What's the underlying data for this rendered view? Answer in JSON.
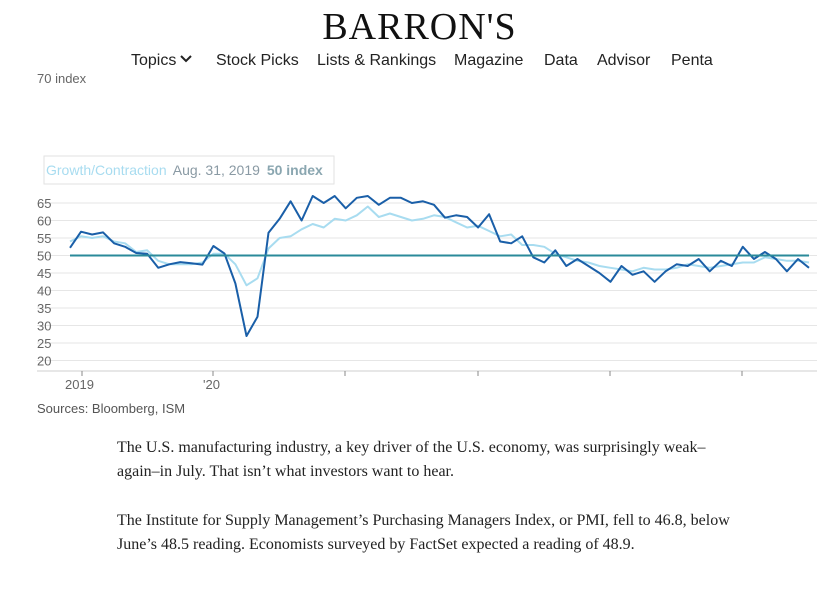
{
  "site": {
    "logo": "BARRON'S"
  },
  "nav": {
    "items": [
      "Topics",
      "Stock Picks",
      "Lists & Rankings",
      "Magazine",
      "Data",
      "Advisor",
      "Penta"
    ]
  },
  "chart_data": {
    "type": "line",
    "ylabel": "70 index",
    "ylim": [
      18,
      70
    ],
    "y_ticks": [
      20,
      25,
      30,
      35,
      40,
      45,
      50,
      55,
      60,
      65
    ],
    "x_tick_labels": [
      "2019",
      "'20"
    ],
    "x_start": "2018-12",
    "reference_line": {
      "value": 50,
      "label": "Growth/Contraction",
      "date": "Aug. 31, 2019",
      "value_label": "50 index",
      "color": "#2a8a9a"
    },
    "series": [
      {
        "color": "#1a5fa8",
        "values": [
          52.2,
          56.8,
          56.0,
          56.6,
          53.5,
          52.5,
          50.7,
          50.5,
          46.5,
          47.5,
          48.1,
          47.8,
          47.4,
          52.7,
          50.6,
          42.0,
          27.0,
          32.5,
          56.5,
          60.5,
          65.5,
          60.0,
          67.0,
          65.0,
          67.0,
          63.5,
          66.5,
          67.0,
          64.5,
          66.5,
          66.5,
          65.0,
          65.5,
          64.5,
          60.8,
          61.5,
          61.0,
          58.0,
          61.8,
          54.0,
          53.5,
          55.5,
          49.5,
          48.0,
          51.5,
          47.0,
          49.0,
          47.0,
          45.0,
          42.5,
          47.0,
          44.5,
          45.5,
          42.5,
          45.5,
          47.5,
          47.0,
          49.0,
          45.5,
          48.5,
          47.0,
          52.5,
          49.0,
          51.0,
          49.0,
          45.5,
          49.0,
          46.5
        ]
      },
      {
        "color": "#a8dcf0",
        "values": [
          54.0,
          55.5,
          55.0,
          55.5,
          54.0,
          53.5,
          51.0,
          51.5,
          48.5,
          47.5,
          47.5,
          47.5,
          48.0,
          50.5,
          50.5,
          47.5,
          41.5,
          43.5,
          52.0,
          55.0,
          55.5,
          57.5,
          59.0,
          58.0,
          60.5,
          60.0,
          61.5,
          64.0,
          61.0,
          62.0,
          61.0,
          60.0,
          60.5,
          61.5,
          61.0,
          59.5,
          58.0,
          58.5,
          57.0,
          55.5,
          56.0,
          53.0,
          53.0,
          52.5,
          50.5,
          49.5,
          48.5,
          48.0,
          47.0,
          46.5,
          46.0,
          45.5,
          46.5,
          46.0,
          46.0,
          46.5,
          47.5,
          47.0,
          46.5,
          47.0,
          47.5,
          48.0,
          48.0,
          49.5,
          49.0,
          48.5,
          48.5,
          48.0
        ]
      }
    ]
  },
  "sources": "Sources: Bloomberg, ISM",
  "article": {
    "p1": "The U.S. manufacturing industry, a key driver of the U.S. economy, was surprisingly weak–again–in July. That isn’t what investors want to hear.",
    "p2": "The Institute for Supply Management’s Purchasing Managers Index, or PMI, fell to 46.8, below June’s 48.5 reading. Economists surveyed by FactSet expected a reading of 48.9."
  }
}
